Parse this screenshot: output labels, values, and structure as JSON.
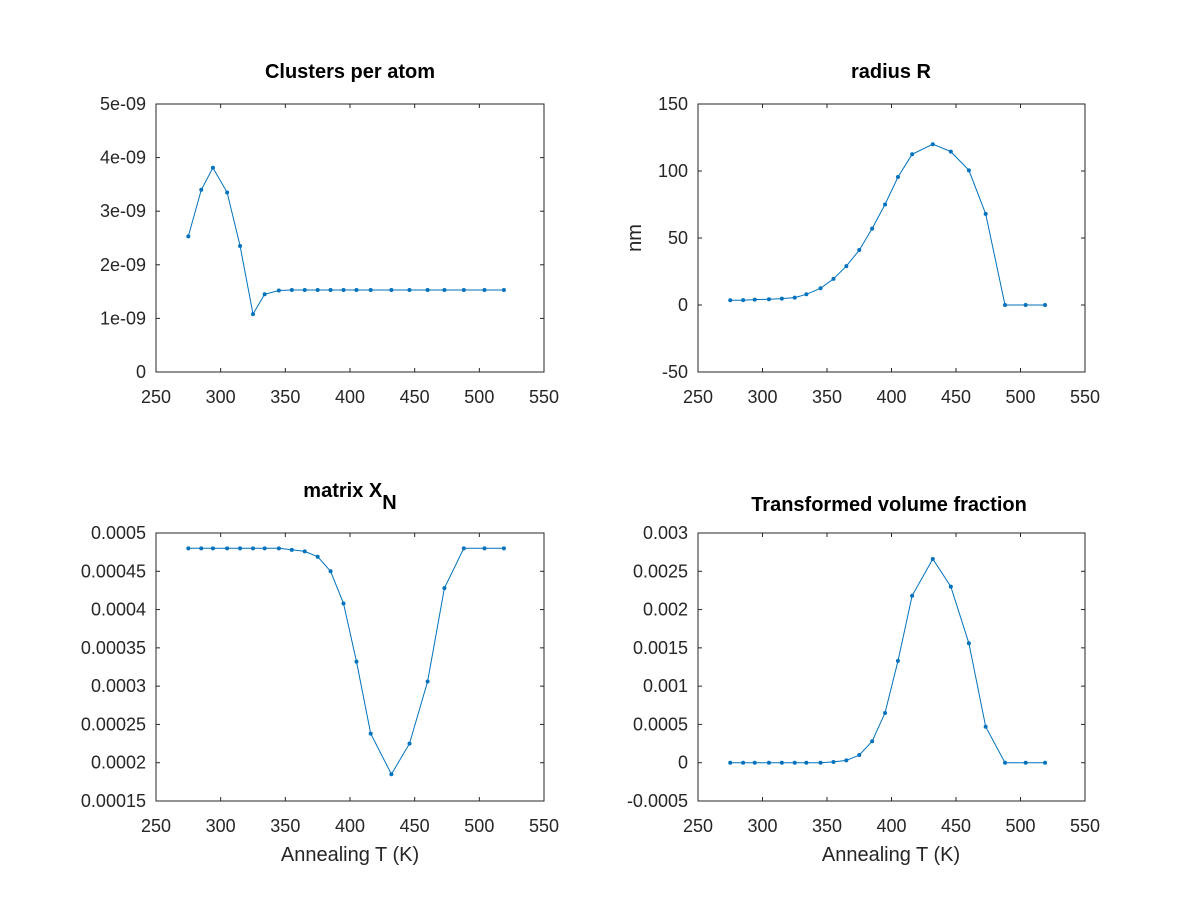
{
  "colors": {
    "series": "#0072bd",
    "axes": "#262626",
    "background": "#ffffff"
  },
  "chart_data": [
    {
      "type": "line",
      "title": "Clusters per atom",
      "title_sub": "",
      "xlabel": "",
      "ylabel": "",
      "xlim": [
        250,
        550
      ],
      "ylim": [
        0,
        5e-09
      ],
      "xticks": [
        250,
        300,
        350,
        400,
        450,
        500,
        550
      ],
      "xtick_labels": [
        "250",
        "300",
        "350",
        "400",
        "450",
        "500",
        "550"
      ],
      "yticks": [
        0,
        1e-09,
        2e-09,
        3e-09,
        4e-09,
        5e-09
      ],
      "ytick_labels": [
        "0",
        "1e-09",
        "2e-09",
        "3e-09",
        "4e-09",
        "5e-09"
      ],
      "grid": false,
      "series": [
        {
          "x": [
            275,
            285,
            294,
            305,
            315,
            325,
            334,
            345,
            355,
            365,
            375,
            385,
            395,
            405,
            416,
            432,
            446,
            460,
            473,
            488,
            504,
            519
          ],
          "y": [
            2.53e-09,
            3.4e-09,
            3.81e-09,
            3.35e-09,
            2.35e-09,
            1.08e-09,
            1.45e-09,
            1.52e-09,
            1.53e-09,
            1.53e-09,
            1.53e-09,
            1.53e-09,
            1.53e-09,
            1.53e-09,
            1.53e-09,
            1.53e-09,
            1.53e-09,
            1.53e-09,
            1.53e-09,
            1.53e-09,
            1.53e-09,
            1.53e-09
          ]
        }
      ]
    },
    {
      "type": "line",
      "title": "radius R",
      "title_sub": "",
      "xlabel": "",
      "ylabel": "nm",
      "xlim": [
        250,
        550
      ],
      "ylim": [
        -50,
        150
      ],
      "xticks": [
        250,
        300,
        350,
        400,
        450,
        500,
        550
      ],
      "xtick_labels": [
        "250",
        "300",
        "350",
        "400",
        "450",
        "500",
        "550"
      ],
      "yticks": [
        -50,
        0,
        50,
        100,
        150
      ],
      "ytick_labels": [
        "-50",
        "0",
        "50",
        "100",
        "150"
      ],
      "grid": false,
      "series": [
        {
          "x": [
            275,
            285,
            294,
            305,
            315,
            325,
            334,
            345,
            355,
            365,
            375,
            385,
            395,
            405,
            416,
            432,
            446,
            460,
            473,
            488,
            504,
            519
          ],
          "y": [
            3.5,
            3.6,
            4.0,
            4.3,
            4.8,
            5.5,
            8,
            12.5,
            19.5,
            29,
            41,
            57,
            75,
            95.5,
            112.5,
            120,
            114.5,
            100.5,
            68,
            0,
            0,
            0
          ]
        }
      ]
    },
    {
      "type": "line",
      "title": "matrix X",
      "title_sub": "N",
      "xlabel": "Annealing T (K)",
      "ylabel": "",
      "xlim": [
        250,
        550
      ],
      "ylim": [
        0.00015,
        0.0005
      ],
      "xticks": [
        250,
        300,
        350,
        400,
        450,
        500,
        550
      ],
      "xtick_labels": [
        "250",
        "300",
        "350",
        "400",
        "450",
        "500",
        "550"
      ],
      "yticks": [
        0.00015,
        0.0002,
        0.00025,
        0.0003,
        0.00035,
        0.0004,
        0.00045,
        0.0005
      ],
      "ytick_labels": [
        "0.00015",
        "0.0002",
        "0.00025",
        "0.0003",
        "0.00035",
        "0.0004",
        "0.00045",
        "0.0005"
      ],
      "grid": false,
      "series": [
        {
          "x": [
            275,
            285,
            294,
            305,
            315,
            325,
            334,
            345,
            355,
            365,
            375,
            385,
            395,
            405,
            416,
            432,
            446,
            460,
            473,
            488,
            504,
            519
          ],
          "y": [
            0.00048,
            0.00048,
            0.00048,
            0.00048,
            0.00048,
            0.00048,
            0.00048,
            0.00048,
            0.000478,
            0.000476,
            0.000469,
            0.00045,
            0.000408,
            0.000332,
            0.000238,
            0.000185,
            0.000225,
            0.000306,
            0.000428,
            0.00048,
            0.00048,
            0.00048
          ]
        }
      ]
    },
    {
      "type": "line",
      "title": "Transformed volume fraction",
      "title_sub": "",
      "xlabel": "Annealing T (K)",
      "ylabel": "",
      "xlim": [
        250,
        550
      ],
      "ylim": [
        -0.0005,
        0.003
      ],
      "xticks": [
        250,
        300,
        350,
        400,
        450,
        500,
        550
      ],
      "xtick_labels": [
        "250",
        "300",
        "350",
        "400",
        "450",
        "500",
        "550"
      ],
      "yticks": [
        -0.0005,
        0,
        0.0005,
        0.001,
        0.0015,
        0.002,
        0.0025,
        0.003
      ],
      "ytick_labels": [
        "-0.0005",
        "0",
        "0.0005",
        "0.001",
        "0.0015",
        "0.002",
        "0.0025",
        "0.003"
      ],
      "grid": false,
      "series": [
        {
          "x": [
            275,
            285,
            294,
            305,
            315,
            325,
            334,
            345,
            355,
            365,
            375,
            385,
            395,
            405,
            416,
            432,
            446,
            460,
            473,
            488,
            504,
            519
          ],
          "y": [
            0,
            0,
            0,
            0,
            0,
            0,
            0,
            0,
            1e-05,
            3e-05,
            0.0001,
            0.00028,
            0.00065,
            0.00133,
            0.00218,
            0.00266,
            0.0023,
            0.00156,
            0.00047,
            0,
            0,
            0
          ]
        }
      ]
    }
  ]
}
